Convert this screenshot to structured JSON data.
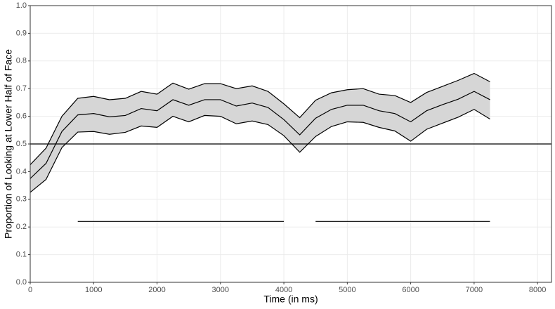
{
  "chart_data": {
    "type": "ribbon-line",
    "xlabel": "Time (in ms)",
    "ylabel": "Proportion of Looking at Lower Half of Face",
    "x": [
      0,
      250,
      500,
      750,
      1000,
      1250,
      1500,
      1750,
      2000,
      2250,
      2500,
      2750,
      3000,
      3250,
      3500,
      3750,
      4000,
      4250,
      4500,
      4750,
      5000,
      5250,
      5500,
      5750,
      6000,
      6250,
      6500,
      6750,
      7000,
      7250
    ],
    "mean": [
      0.375,
      0.43,
      0.545,
      0.605,
      0.61,
      0.598,
      0.603,
      0.628,
      0.62,
      0.66,
      0.64,
      0.66,
      0.66,
      0.637,
      0.648,
      0.632,
      0.588,
      0.533,
      0.593,
      0.625,
      0.64,
      0.64,
      0.62,
      0.61,
      0.58,
      0.62,
      0.642,
      0.662,
      0.69,
      0.66
    ],
    "upper": [
      0.425,
      0.485,
      0.6,
      0.665,
      0.672,
      0.66,
      0.665,
      0.69,
      0.68,
      0.72,
      0.698,
      0.718,
      0.718,
      0.7,
      0.71,
      0.69,
      0.645,
      0.595,
      0.658,
      0.685,
      0.696,
      0.7,
      0.68,
      0.675,
      0.65,
      0.686,
      0.708,
      0.73,
      0.755,
      0.725
    ],
    "lower": [
      0.325,
      0.372,
      0.487,
      0.543,
      0.545,
      0.535,
      0.542,
      0.565,
      0.56,
      0.6,
      0.58,
      0.603,
      0.6,
      0.573,
      0.583,
      0.57,
      0.53,
      0.47,
      0.527,
      0.563,
      0.58,
      0.578,
      0.56,
      0.547,
      0.51,
      0.553,
      0.575,
      0.597,
      0.625,
      0.59
    ],
    "ribbon_color": "#d6d6d6",
    "line_color": "#000000",
    "hline": 0.5,
    "segments": [
      {
        "x": [
          750,
          4000
        ],
        "y": 0.22
      },
      {
        "x": [
          4500,
          7250
        ],
        "y": 0.22
      }
    ],
    "xlim": [
      0,
      8220
    ],
    "ylim": [
      0,
      1
    ],
    "xticks": [
      0,
      1000,
      2000,
      3000,
      4000,
      5000,
      6000,
      7000,
      8000
    ],
    "yticks": [
      {
        "value": 0,
        "label": "0.0"
      },
      0.1,
      0.2,
      0.3,
      0.4,
      0.5,
      0.6,
      0.7,
      0.8,
      0.9,
      {
        "value": 1,
        "label": "1.0"
      }
    ],
    "grid": true
  }
}
